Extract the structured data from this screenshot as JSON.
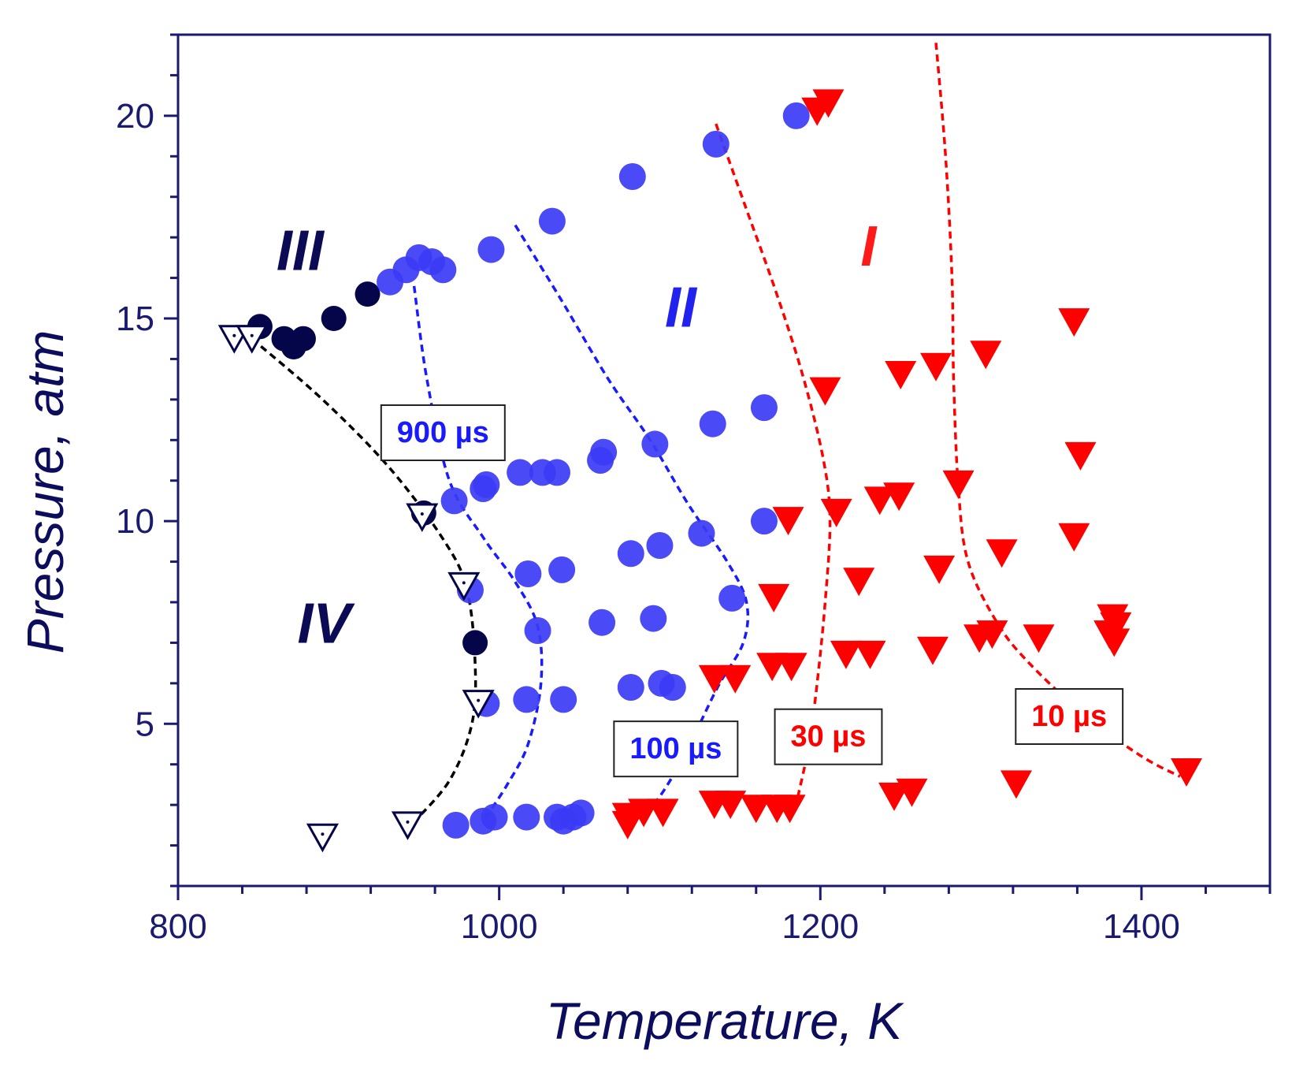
{
  "chart_data": {
    "type": "scatter",
    "xlabel": "Temperature,  K",
    "ylabel": "Pressure,  atm",
    "xlim": [
      800,
      1480
    ],
    "ylim": [
      1,
      22
    ],
    "x_ticks": [
      800,
      1000,
      1200,
      1400
    ],
    "y_ticks": [
      5,
      10,
      15,
      20
    ],
    "colors": {
      "axis": "#1a1a6e",
      "region_I": "#ff0000",
      "region_II": "#3333ff",
      "region_III": "#0a0a55",
      "region_IV": "#0a0a55",
      "blue_points": "#3b3bf5",
      "dark_points": "#05054a",
      "red_points": "#ff0000",
      "black_curve": "#000000",
      "blue_curve": "#1a1aff",
      "red_curve": "#ff0000"
    },
    "region_labels": [
      {
        "text": "I",
        "x": 1230,
        "y": 16.3,
        "color": "#ff1a1a"
      },
      {
        "text": "II",
        "x": 1113,
        "y": 14.8,
        "color": "#2222ee"
      },
      {
        "text": "III",
        "x": 876,
        "y": 16.2,
        "color": "#0a0a55"
      },
      {
        "text": "IV",
        "x": 891,
        "y": 7.0,
        "color": "#0a0a55"
      }
    ],
    "curve_labels": [
      {
        "text": "900 µs",
        "x": 965,
        "y": 12.2,
        "color": "#1a1aff"
      },
      {
        "text": "100 µs",
        "x": 1110,
        "y": 4.4,
        "color": "#1a1aff"
      },
      {
        "text": "30 µs",
        "x": 1205,
        "y": 4.7,
        "color": "#ff0000"
      },
      {
        "text": "10 µs",
        "x": 1355,
        "y": 5.2,
        "color": "#ff0000"
      }
    ],
    "series": [
      {
        "marker": "circle-dark",
        "points": [
          [
            851,
            14.8
          ],
          [
            866,
            14.5
          ],
          [
            872,
            14.3
          ],
          [
            878,
            14.5
          ],
          [
            897,
            15.0
          ],
          [
            918,
            15.6
          ],
          [
            953,
            10.2
          ],
          [
            985,
            7.0
          ]
        ]
      },
      {
        "marker": "circle-blue",
        "points": [
          [
            1185,
            20.0
          ],
          [
            1135,
            19.3
          ],
          [
            1083,
            18.5
          ],
          [
            1033,
            17.4
          ],
          [
            995,
            16.7
          ],
          [
            965,
            16.2
          ],
          [
            958,
            16.4
          ],
          [
            950,
            16.5
          ],
          [
            942,
            16.2
          ],
          [
            932,
            15.9
          ],
          [
            1165,
            12.8
          ],
          [
            1133,
            12.4
          ],
          [
            1097,
            11.9
          ],
          [
            1065,
            11.7
          ],
          [
            1063,
            11.5
          ],
          [
            1036,
            11.2
          ],
          [
            1027,
            11.2
          ],
          [
            1013,
            11.2
          ],
          [
            992,
            10.9
          ],
          [
            990,
            10.8
          ],
          [
            972,
            10.5
          ],
          [
            1165,
            10.0
          ],
          [
            1126,
            9.7
          ],
          [
            1100,
            9.4
          ],
          [
            1082,
            9.2
          ],
          [
            1039,
            8.8
          ],
          [
            1018,
            8.7
          ],
          [
            982,
            8.3
          ],
          [
            1145,
            8.1
          ],
          [
            1096,
            7.6
          ],
          [
            1064,
            7.5
          ],
          [
            1024,
            7.3
          ],
          [
            1101,
            6.0
          ],
          [
            1108,
            5.9
          ],
          [
            1082,
            5.9
          ],
          [
            1040,
            5.6
          ],
          [
            1017,
            5.6
          ],
          [
            992,
            5.5
          ],
          [
            1051,
            2.8
          ],
          [
            1046,
            2.7
          ],
          [
            1040,
            2.6
          ],
          [
            1036,
            2.7
          ],
          [
            1017,
            2.7
          ],
          [
            997,
            2.7
          ],
          [
            990,
            2.6
          ],
          [
            973,
            2.5
          ]
        ]
      },
      {
        "marker": "triangle-red",
        "points": [
          [
            1205,
            20.3
          ],
          [
            1198,
            20.1
          ],
          [
            1358,
            14.9
          ],
          [
            1303,
            14.1
          ],
          [
            1272,
            13.8
          ],
          [
            1250,
            13.6
          ],
          [
            1203,
            13.2
          ],
          [
            1362,
            11.6
          ],
          [
            1286,
            10.9
          ],
          [
            1249,
            10.6
          ],
          [
            1237,
            10.5
          ],
          [
            1210,
            10.2
          ],
          [
            1180,
            10.0
          ],
          [
            1358,
            9.6
          ],
          [
            1313,
            9.2
          ],
          [
            1274,
            8.8
          ],
          [
            1224,
            8.5
          ],
          [
            1171,
            8.1
          ],
          [
            1382,
            7.6
          ],
          [
            1384,
            7.4
          ],
          [
            1380,
            7.2
          ],
          [
            1383,
            7.0
          ],
          [
            1336,
            7.1
          ],
          [
            1307,
            7.2
          ],
          [
            1299,
            7.1
          ],
          [
            1270,
            6.8
          ],
          [
            1231,
            6.7
          ],
          [
            1216,
            6.7
          ],
          [
            1182,
            6.4
          ],
          [
            1170,
            6.4
          ],
          [
            1147,
            6.1
          ],
          [
            1134,
            6.1
          ],
          [
            1428,
            3.8
          ],
          [
            1322,
            3.5
          ],
          [
            1257,
            3.3
          ],
          [
            1246,
            3.2
          ],
          [
            1181,
            2.9
          ],
          [
            1173,
            2.9
          ],
          [
            1160,
            2.9
          ],
          [
            1144,
            3.0
          ],
          [
            1134,
            3.0
          ],
          [
            1102,
            2.8
          ],
          [
            1090,
            2.8
          ],
          [
            1080,
            2.7
          ],
          [
            1080,
            2.5
          ]
        ]
      },
      {
        "marker": "triangle-open",
        "points": [
          [
            835,
            14.5
          ],
          [
            846,
            14.5
          ],
          [
            952,
            10.1
          ],
          [
            978,
            8.4
          ],
          [
            987,
            5.5
          ],
          [
            943,
            2.5
          ],
          [
            890,
            2.2
          ]
        ]
      }
    ],
    "curves": [
      {
        "name_label": "",
        "color": "#000000",
        "points": [
          [
            846,
            14.5
          ],
          [
            890,
            13.0
          ],
          [
            932,
            11.3
          ],
          [
            966,
            9.5
          ],
          [
            980,
            8.3
          ],
          [
            985,
            6.5
          ],
          [
            983,
            5.0
          ],
          [
            969,
            3.6
          ],
          [
            945,
            2.5
          ]
        ]
      },
      {
        "name_label": "900 µs",
        "color": "#1a1aff",
        "points": [
          [
            947,
            15.8
          ],
          [
            955,
            13.5
          ],
          [
            969,
            11.0
          ],
          [
            990,
            9.6
          ],
          [
            1010,
            8.5
          ],
          [
            1024,
            7.4
          ],
          [
            1026,
            6.0
          ],
          [
            1018,
            4.5
          ],
          [
            1005,
            3.5
          ],
          [
            990,
            2.6
          ]
        ]
      },
      {
        "name_label": "100 µs",
        "color": "#1a1aff",
        "points": [
          [
            1010,
            17.3
          ],
          [
            1038,
            15.5
          ],
          [
            1068,
            13.5
          ],
          [
            1094,
            12.0
          ],
          [
            1118,
            10.4
          ],
          [
            1142,
            9.0
          ],
          [
            1154,
            8.0
          ],
          [
            1152,
            7.0
          ],
          [
            1136,
            5.9
          ],
          [
            1115,
            4.2
          ],
          [
            1098,
            3.1
          ],
          [
            1084,
            2.6
          ]
        ]
      },
      {
        "name_label": "30 µs",
        "color": "#ff0000",
        "points": [
          [
            1135,
            19.8
          ],
          [
            1153,
            17.8
          ],
          [
            1172,
            15.7
          ],
          [
            1189,
            13.6
          ],
          [
            1202,
            11.5
          ],
          [
            1206,
            10.0
          ],
          [
            1203,
            8.0
          ],
          [
            1198,
            6.0
          ],
          [
            1193,
            4.5
          ],
          [
            1186,
            3.2
          ]
        ]
      },
      {
        "name_label": "10 µs",
        "color": "#ff0000",
        "points": [
          [
            1272,
            21.8
          ],
          [
            1278,
            19.0
          ],
          [
            1282,
            16.0
          ],
          [
            1283,
            13.5
          ],
          [
            1286,
            10.8
          ],
          [
            1292,
            9.0
          ],
          [
            1310,
            7.5
          ],
          [
            1330,
            6.5
          ],
          [
            1365,
            5.2
          ],
          [
            1400,
            4.2
          ],
          [
            1424,
            3.7
          ]
        ]
      }
    ]
  }
}
